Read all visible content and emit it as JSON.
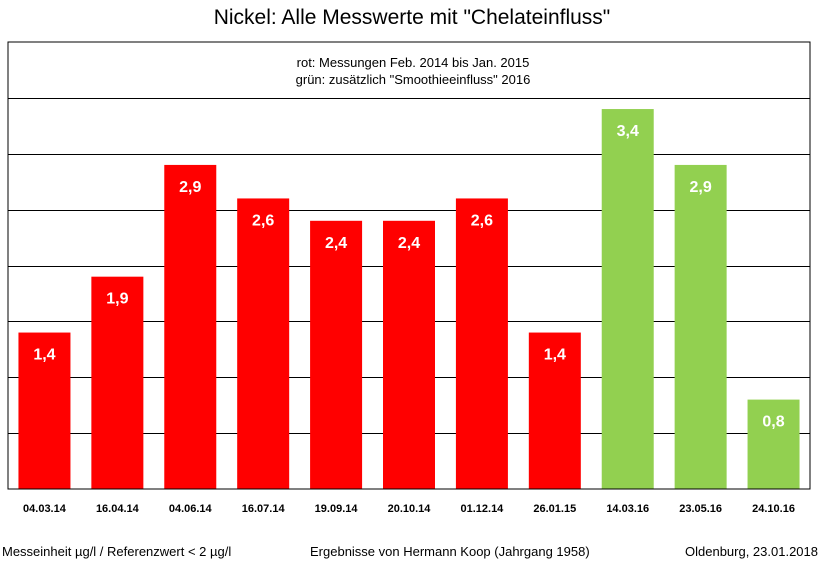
{
  "title": "Nickel: Alle Messwerte mit \"Chelateinfluss\"",
  "legend_lines": [
    "rot: Messungen Feb. 2014 bis Jan. 2015",
    "grün: zusätzlich \"Smoothieeinfluss\" 2016"
  ],
  "colors": {
    "red": "#ff0000",
    "green": "#92d050",
    "grid": "#000000"
  },
  "chart_data": {
    "type": "bar",
    "title": "Nickel: Alle Messwerte mit \"Chelateinfluss\"",
    "categories": [
      "04.03.14",
      "16.04.14",
      "04.06.14",
      "16.07.14",
      "19.09.14",
      "20.10.14",
      "01.12.14",
      "26.01.15",
      "14.03.16",
      "23.05.16",
      "24.10.16"
    ],
    "values": [
      1.4,
      1.9,
      2.9,
      2.6,
      2.4,
      2.4,
      2.6,
      1.4,
      3.4,
      2.9,
      0.8
    ],
    "value_labels": [
      "1,4",
      "1,9",
      "2,9",
      "2,6",
      "2,4",
      "2,4",
      "2,6",
      "1,4",
      "3,4",
      "2,9",
      "0,8"
    ],
    "bar_colors": [
      "red",
      "red",
      "red",
      "red",
      "red",
      "red",
      "red",
      "red",
      "green",
      "green",
      "green"
    ],
    "ylim": [
      0,
      4
    ],
    "gridlines": [
      0.5,
      1.0,
      1.5,
      2.0,
      2.5,
      3.0,
      3.5
    ],
    "y_tick_labels_shown": false,
    "grid": true,
    "legend": "top-center"
  },
  "footer": {
    "left": "Messeinheit µg/l / Referenzwert < 2 µg/l",
    "middle": "Ergebnisse von Hermann Koop (Jahrgang 1958)",
    "right": "Oldenburg, 23.01.2018"
  }
}
